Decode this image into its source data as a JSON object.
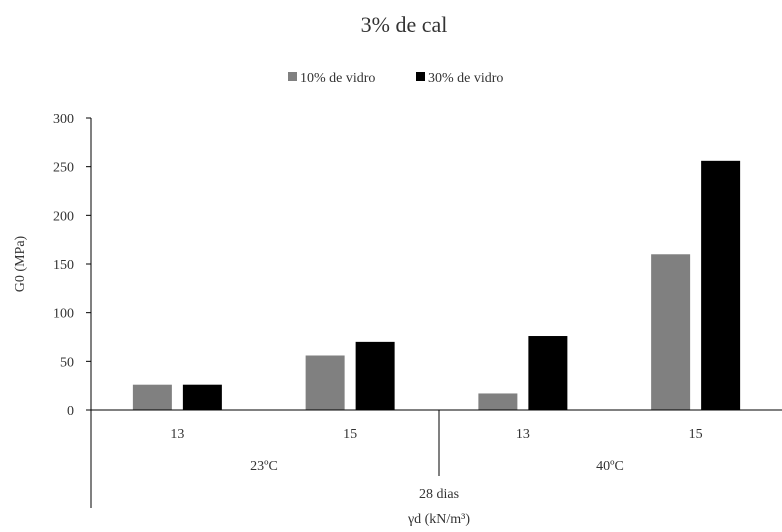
{
  "chart_data": {
    "type": "bar",
    "title": "3% de cal",
    "ylabel": "G0 (MPa)",
    "xlabel_levels": [
      "28 dias",
      "γd (kN/m³)"
    ],
    "ylim": [
      0,
      300
    ],
    "yticks": [
      0,
      50,
      100,
      150,
      200,
      250,
      300
    ],
    "groups": [
      {
        "label": "23ºC",
        "categories": [
          "13",
          "15"
        ]
      },
      {
        "label": "40ºC",
        "categories": [
          "13",
          "15"
        ]
      }
    ],
    "categories": [
      "13",
      "15",
      "13",
      "15"
    ],
    "series": [
      {
        "name": "10% de vidro",
        "color": "#808080",
        "values": [
          26,
          56,
          17,
          160
        ]
      },
      {
        "name": "30% de vidro",
        "color": "#000000",
        "values": [
          26,
          70,
          76,
          256
        ]
      }
    ],
    "legend": "top-center",
    "grid": false
  }
}
